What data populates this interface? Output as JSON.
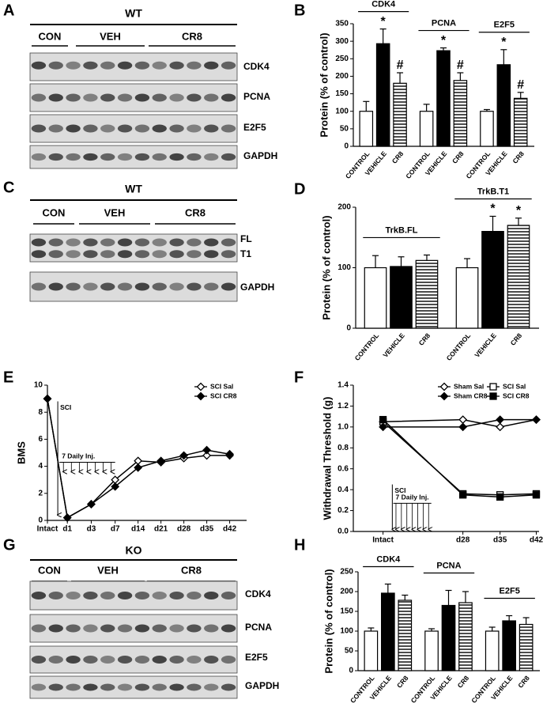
{
  "panel_labels": [
    "A",
    "B",
    "C",
    "D",
    "E",
    "F",
    "G",
    "H"
  ],
  "blots": [
    {
      "genotype": "WT",
      "groups": [
        "CON",
        "VEH",
        "CR8"
      ],
      "bands": [
        "CDK4",
        "PCNA",
        "E2F5",
        "GAPDH"
      ]
    },
    {
      "genotype": "WT",
      "groups": [
        "CON",
        "VEH",
        "CR8"
      ],
      "bands": [
        "FL",
        "T1",
        "GAPDH"
      ]
    },
    {
      "genotype": "KO",
      "groups": [
        "CON",
        "VEH",
        "CR8"
      ],
      "bands": [
        "CDK4",
        "PCNA",
        "E2F5",
        "GAPDH"
      ]
    }
  ],
  "chart_data": [
    {
      "type": "bar",
      "ylabel": "Protein (% of control)",
      "ylim": [
        0,
        350
      ],
      "yticks": [
        0,
        50,
        100,
        150,
        200,
        250,
        300,
        350
      ],
      "patterns": [
        "open",
        "solid",
        "striped"
      ],
      "groups": [
        {
          "name": "CDK4",
          "categories": [
            "CONTROL",
            "VEHICLE",
            "CR8"
          ],
          "values": [
            100,
            293,
            180
          ],
          "errors": [
            28,
            42,
            30
          ],
          "annotations": [
            null,
            "*",
            "#"
          ]
        },
        {
          "name": "PCNA",
          "categories": [
            "CONTROL",
            "VEHICLE",
            "CR8"
          ],
          "values": [
            100,
            273,
            188
          ],
          "errors": [
            20,
            8,
            22
          ],
          "annotations": [
            null,
            "*",
            "#"
          ]
        },
        {
          "name": "E2F5",
          "categories": [
            "CONTROL",
            "VEHICLE",
            "CR8"
          ],
          "values": [
            100,
            233,
            137
          ],
          "errors": [
            5,
            43,
            17
          ],
          "annotations": [
            null,
            "*",
            "#"
          ]
        }
      ]
    },
    {
      "type": "bar",
      "ylabel": "Protein (% of control)",
      "ylim": [
        0,
        200
      ],
      "yticks": [
        0,
        100,
        200
      ],
      "patterns": [
        "open",
        "solid",
        "striped"
      ],
      "groups": [
        {
          "name": "TrkB.FL",
          "categories": [
            "CONTROL",
            "VEHICLE",
            "CR8"
          ],
          "values": [
            100,
            102,
            112
          ],
          "errors": [
            20,
            16,
            9
          ],
          "annotations": [
            null,
            null,
            null
          ]
        },
        {
          "name": "TrkB.T1",
          "categories": [
            "CONTROL",
            "VEHICLE",
            "CR8"
          ],
          "values": [
            100,
            160,
            170
          ],
          "errors": [
            15,
            25,
            12
          ],
          "annotations": [
            null,
            "*",
            "*"
          ]
        }
      ]
    },
    {
      "type": "line",
      "ylabel": "BMS",
      "categories": [
        "Intact",
        "d1",
        "d3",
        "d7",
        "d14",
        "d21",
        "d28",
        "d35",
        "d42"
      ],
      "ylim": [
        0,
        10
      ],
      "yticks": [
        0,
        2,
        4,
        6,
        8,
        10
      ],
      "legend": "upper right",
      "annotations": [
        "SCI",
        "7 Daily Inj."
      ],
      "series": [
        {
          "name": "SCI Sal",
          "marker": "diamond-open",
          "color": "#000000",
          "values": [
            9,
            0.2,
            1.2,
            3.0,
            4.4,
            4.3,
            4.6,
            4.8,
            4.8
          ]
        },
        {
          "name": "SCI CR8",
          "marker": "diamond-filled",
          "color": "#000000",
          "values": [
            9,
            0.2,
            1.2,
            2.5,
            3.9,
            4.4,
            4.8,
            5.2,
            4.9
          ]
        }
      ]
    },
    {
      "type": "line",
      "ylabel": "Withdrawal Threshold (g)",
      "categories": [
        "Intact",
        "d28",
        "d35",
        "d42"
      ],
      "ylim": [
        0,
        1.4
      ],
      "yticks": [
        {
          "value": 0,
          "label": "0.0"
        },
        0.2,
        0.4,
        0.6,
        0.8,
        {
          "value": 1,
          "label": "1.0"
        },
        1.2,
        1.4
      ],
      "legend": "upper right",
      "annotations": [
        "SCI",
        "7 Daily Inj."
      ],
      "series": [
        {
          "name": "Sham Sal",
          "marker": "diamond-open",
          "color": "#000000",
          "values": [
            1.05,
            1.07,
            1.0,
            1.07
          ]
        },
        {
          "name": "SCI Sal",
          "marker": "square-open",
          "color": "#000000",
          "values": [
            1.05,
            0.36,
            0.35,
            0.36
          ]
        },
        {
          "name": "Sham CR8",
          "marker": "diamond-filled",
          "color": "#000000",
          "values": [
            1.0,
            1.0,
            1.07,
            1.07
          ]
        },
        {
          "name": "SCI CR8",
          "marker": "square-filled",
          "color": "#000000",
          "values": [
            1.07,
            0.35,
            0.33,
            0.35
          ]
        }
      ]
    },
    {
      "type": "bar",
      "ylabel": "Protein (% of control)",
      "ylim": [
        0,
        250
      ],
      "yticks": [
        0,
        50,
        100,
        150,
        200,
        250
      ],
      "patterns": [
        "open",
        "solid",
        "striped"
      ],
      "groups": [
        {
          "name": "CDK4",
          "categories": [
            "CONTROL",
            "VEHICLE",
            "CR8"
          ],
          "values": [
            100,
            196,
            178
          ],
          "errors": [
            8,
            23,
            13
          ],
          "annotations": [
            null,
            null,
            null
          ]
        },
        {
          "name": "PCNA",
          "categories": [
            "CONTROL",
            "VEHICLE",
            "CR8"
          ],
          "values": [
            100,
            165,
            172
          ],
          "errors": [
            6,
            38,
            28
          ],
          "annotations": [
            null,
            null,
            null
          ]
        },
        {
          "name": "E2F5",
          "categories": [
            "CONTROL",
            "VEHICLE",
            "CR8"
          ],
          "values": [
            100,
            126,
            117
          ],
          "errors": [
            10,
            13,
            17
          ],
          "annotations": [
            null,
            null,
            null
          ]
        }
      ]
    }
  ]
}
